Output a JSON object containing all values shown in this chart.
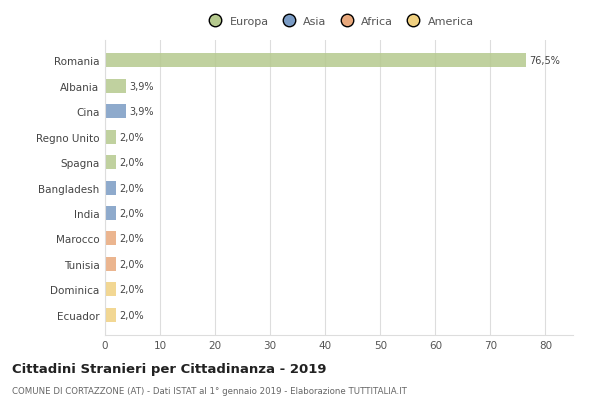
{
  "countries": [
    "Romania",
    "Albania",
    "Cina",
    "Regno Unito",
    "Spagna",
    "Bangladesh",
    "India",
    "Marocco",
    "Tunisia",
    "Dominica",
    "Ecuador"
  ],
  "values": [
    76.5,
    3.9,
    3.9,
    2.0,
    2.0,
    2.0,
    2.0,
    2.0,
    2.0,
    2.0,
    2.0
  ],
  "labels": [
    "76,5%",
    "3,9%",
    "3,9%",
    "2,0%",
    "2,0%",
    "2,0%",
    "2,0%",
    "2,0%",
    "2,0%",
    "2,0%",
    "2,0%"
  ],
  "colors": [
    "#b5c98e",
    "#b5c98e",
    "#7a9bc4",
    "#b5c98e",
    "#b5c98e",
    "#7a9bc4",
    "#7a9bc4",
    "#e8a87c",
    "#e8a87c",
    "#f0d080",
    "#f0d080"
  ],
  "legend_labels": [
    "Europa",
    "Asia",
    "Africa",
    "America"
  ],
  "legend_colors": [
    "#b5c98e",
    "#7a9bc4",
    "#e8a87c",
    "#f0d080"
  ],
  "xlim": [
    0,
    85
  ],
  "xticks": [
    0,
    10,
    20,
    30,
    40,
    50,
    60,
    70,
    80
  ],
  "title": "Cittadini Stranieri per Cittadinanza - 2019",
  "subtitle": "COMUNE DI CORTAZZONE (AT) - Dati ISTAT al 1° gennaio 2019 - Elaborazione TUTTITALIA.IT",
  "bg_color": "#ffffff",
  "grid_color": "#dddddd",
  "bar_height": 0.55
}
